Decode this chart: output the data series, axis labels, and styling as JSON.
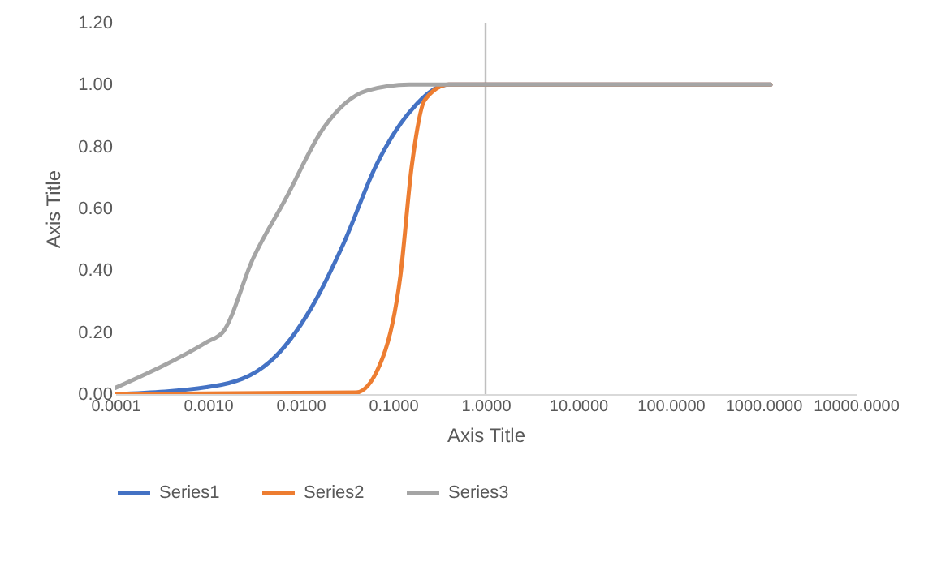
{
  "chart_data": {
    "type": "line",
    "xlabel": "Axis Title",
    "ylabel": "Axis Title",
    "log": "x",
    "xlim": [
      0.0001,
      10000
    ],
    "xticks": [
      0.0001,
      {
        "value": 0.001,
        "label": "0.0010"
      },
      {
        "value": 0.01,
        "label": "0.0100"
      },
      {
        "value": 0.1,
        "label": "0.1000"
      },
      {
        "value": 1,
        "label": "1.0000"
      },
      {
        "value": 10,
        "label": "10.0000"
      },
      {
        "value": 100,
        "label": "100.0000"
      },
      {
        "value": 1000,
        "label": "1000.0000"
      },
      {
        "value": 10000,
        "label": "10000.0000"
      }
    ],
    "ylim": [
      0,
      1.2
    ],
    "yticks": [
      {
        "value": 0,
        "label": "0.00"
      },
      {
        "value": 0.2,
        "label": "0.20"
      },
      {
        "value": 0.4,
        "label": "0.40"
      },
      {
        "value": 0.6,
        "label": "0.60"
      },
      {
        "value": 0.8,
        "label": "0.80"
      },
      {
        "value": 1,
        "label": "1.00"
      },
      {
        "value": 1.2,
        "label": "1.20"
      }
    ],
    "grid": false,
    "legend": "bottom",
    "line_style": "solid",
    "ref_lines": [
      {
        "axis": "x",
        "value": 1,
        "color": "#bfbfbf"
      }
    ],
    "series": [
      {
        "name": "Series1",
        "color": "#4472c4",
        "x": [
          0.0001,
          0.00118,
          0.0047,
          0.0132,
          0.0296,
          0.066,
          0.15,
          0.4,
          1200
        ],
        "values": [
          0,
          0.026,
          0.105,
          0.28,
          0.49,
          0.74,
          0.91,
          1,
          1
        ]
      },
      {
        "name": "Series2",
        "color": "#ed7d31",
        "x": [
          0.0001,
          0.04,
          0.078,
          0.12,
          0.16,
          0.22,
          0.4,
          1200
        ],
        "values": [
          0,
          0.005,
          0.12,
          0.38,
          0.74,
          0.95,
          1,
          1
        ]
      },
      {
        "name": "Series3",
        "color": "#a5a5a5",
        "x": [
          0.0001,
          0.001,
          0.00145,
          0.0031,
          0.0069,
          0.0178,
          0.052,
          0.15,
          1200
        ],
        "values": [
          0.02,
          0.17,
          0.2,
          0.44,
          0.63,
          0.86,
          0.98,
          1,
          1
        ]
      }
    ]
  }
}
